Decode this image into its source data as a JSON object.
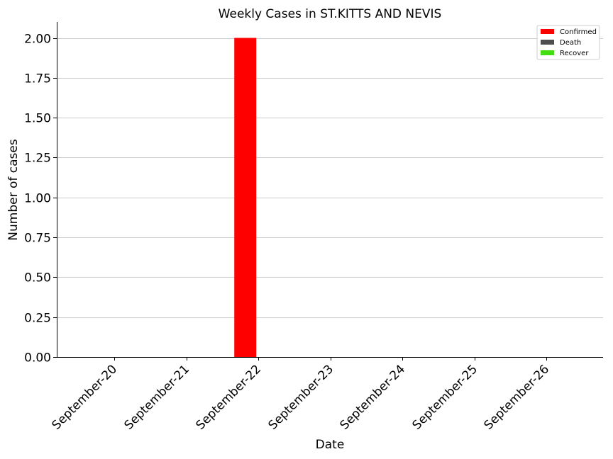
{
  "chart_data": {
    "type": "bar",
    "title": "Weekly Cases in ST.KITTS AND NEVIS",
    "xlabel": "Date",
    "ylabel": "Number of cases",
    "categories": [
      "September-20",
      "September-21",
      "September-22",
      "September-23",
      "September-24",
      "September-25",
      "September-26"
    ],
    "series": [
      {
        "name": "Confirmed",
        "color": "#ff0000",
        "values": [
          0,
          0,
          2,
          0,
          0,
          0,
          0
        ]
      },
      {
        "name": "Death",
        "color": "#4d4d4d",
        "values": [
          0,
          0,
          0,
          0,
          0,
          0,
          0
        ]
      },
      {
        "name": "Recover",
        "color": "#44dd11",
        "values": [
          0,
          0,
          0,
          0,
          0,
          0,
          0
        ]
      }
    ],
    "ylim": [
      0,
      2.1
    ],
    "yticks": [
      "0.00",
      "0.25",
      "0.50",
      "0.75",
      "1.00",
      "1.25",
      "1.50",
      "1.75",
      "2.00"
    ],
    "grid": "horizontal",
    "legend_position": "top-right"
  }
}
